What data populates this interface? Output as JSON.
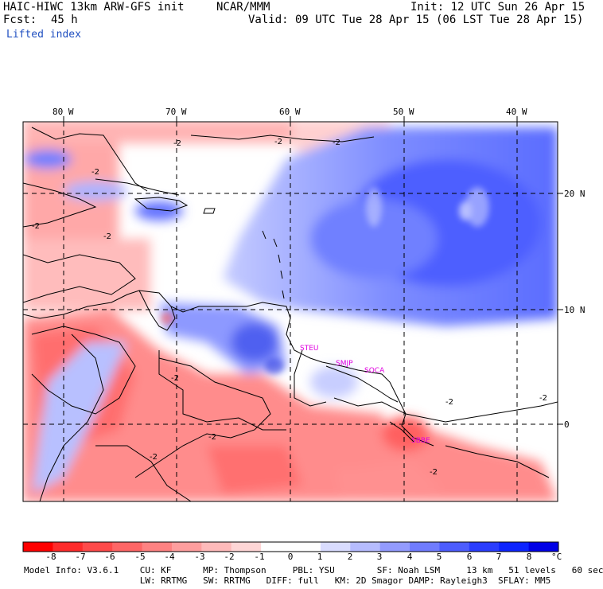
{
  "header": {
    "model": "HAIC-HIWC 13km ARW-GFS init",
    "org": "NCAR/MMM",
    "init": "Init: 12 UTC Sun 26 Apr 15",
    "fcst_label": "Fcst:",
    "fcst_value": "45 h",
    "valid": "Valid: 09 UTC Tue 28 Apr 15 (06 LST Tue 28 Apr 15)",
    "field": "Lifted index"
  },
  "map": {
    "lon_labels": [
      "80 W",
      "70 W",
      "60 W",
      "50 W",
      "40 W"
    ],
    "lat_labels": [
      "20 N",
      "10 N",
      "0"
    ],
    "contour_labels": [
      "-2",
      "-2",
      "-2",
      "-2",
      "-2",
      "-2",
      "-2",
      "-2",
      "-2",
      "-2",
      "-2",
      "-2"
    ],
    "stations": [
      "STEU",
      "SMJP",
      "SOCA",
      "SBBE"
    ],
    "colors": {
      "negative": "#f04040",
      "positive": "#2040e0",
      "neutral": "#ffffff",
      "coast": "#000000",
      "stations": "#e000e0"
    }
  },
  "colorbar": {
    "ticks": [
      "-8",
      "-7",
      "-6",
      "-5",
      "-4",
      "-3",
      "-2",
      "-1",
      "0",
      "1",
      "2",
      "3",
      "4",
      "5",
      "6",
      "7",
      "8"
    ],
    "unit": "°C",
    "colors": [
      "#ff0000",
      "#ff2b2b",
      "#ff4a4a",
      "#ff6666",
      "#ff8282",
      "#ff9e9e",
      "#ffbaba",
      "#ffd6d6",
      "#ffffff",
      "#ffffff",
      "#d9dcff",
      "#b6bcff",
      "#939bff",
      "#707cff",
      "#4d5dff",
      "#2a3dff",
      "#0d24ff",
      "#0000e6"
    ]
  },
  "model_info": {
    "line1": "Model Info: V3.6.1    CU: KF      MP: Thompson     PBL: YSU        SF: Noah LSM     13 km   51 levels   60 sec",
    "line2": "                      LW: RRTMG   SW: RRTMG   DIFF: full   KM: 2D Smagor DAMP: Rayleigh3  SFLAY: MM5"
  }
}
